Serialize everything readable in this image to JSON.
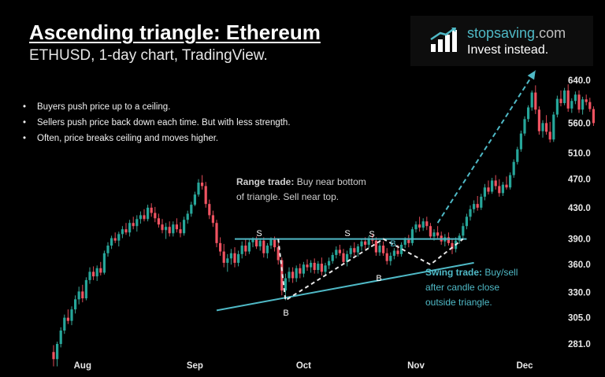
{
  "header": {
    "title": "Ascending triangle: Ethereum",
    "subtitle": "ETHUSD, 1-day chart, TradingView."
  },
  "bullets": [
    "Buyers push price up to a ceiling.",
    "Sellers push price back down each time. But with less strength.",
    "Often, price breaks ceiling and moves higher."
  ],
  "logo": {
    "name_part1": "stop",
    "name_part2": "saving",
    "name_part3": ".com",
    "tagline": "Invest instead."
  },
  "annotations": {
    "range_bold": "Range trade:",
    "range_line1_rest": " Buy near bottom",
    "range_line2": "of triangle. Sell near top.",
    "swing_bold": "Swing trade:",
    "swing_line1_rest": " Buy/sell",
    "swing_line2": "after candle close",
    "swing_line3": "outside triangle."
  },
  "points": [
    {
      "label": "S",
      "x": 329,
      "y": 300,
      "teal": false
    },
    {
      "label": "B",
      "x": 363,
      "y": 401,
      "teal": false
    },
    {
      "label": "S",
      "x": 441,
      "y": 300,
      "teal": false
    },
    {
      "label": "S",
      "x": 472,
      "y": 301,
      "teal": false
    },
    {
      "label": "B",
      "x": 481,
      "y": 357,
      "teal": false
    },
    {
      "label": "B",
      "x": 499,
      "y": 313,
      "teal": true
    }
  ],
  "colors": {
    "up": "#26a69a",
    "down": "#ef5361",
    "wick_up": "#3aa596",
    "wick_down": "#e04a57",
    "teal": "#4fb9c6",
    "dashes": "#e8e8e8",
    "background": "#000000"
  },
  "chart_data": {
    "type": "candlestick",
    "title": "Ascending triangle: Ethereum",
    "subtitle": "ETHUSD, 1-day chart, TradingView.",
    "y_ticks": [
      "640.0",
      "560.0",
      "510.0",
      "470.0",
      "430.0",
      "390.0",
      "360.0",
      "330.0",
      "305.0",
      "281.0"
    ],
    "y_tick_values": [
      640,
      560,
      510,
      470,
      430,
      390,
      360,
      330,
      305,
      281
    ],
    "x_ticks": [
      "Aug",
      "Sep",
      "Oct",
      "Nov",
      "Dec"
    ],
    "x_tick_day": [
      8,
      39,
      69,
      100,
      130
    ],
    "ylim": [
      262,
      682
    ],
    "scale": "log",
    "grid": false,
    "resistance": {
      "start_day": 50,
      "end_day": 114,
      "price": 390
    },
    "support": {
      "start": {
        "day": 45,
        "price": 312
      },
      "end": {
        "day": 116,
        "price": 362
      }
    },
    "range_path": [
      {
        "day": 62,
        "price": 390
      },
      {
        "day": 64,
        "price": 322
      },
      {
        "day": 91,
        "price": 390
      },
      {
        "day": 104,
        "price": 360
      },
      {
        "day": 113,
        "price": 390
      }
    ],
    "breakout_arrow": {
      "from": {
        "day": 106,
        "price": 410
      },
      "to": {
        "day": 133,
        "price": 660
      }
    },
    "candles": [
      [
        274,
        280,
        262,
        268
      ],
      [
        268,
        283,
        262,
        281
      ],
      [
        281,
        296,
        278,
        293
      ],
      [
        293,
        308,
        290,
        305
      ],
      [
        305,
        313,
        299,
        302
      ],
      [
        302,
        316,
        298,
        313
      ],
      [
        313,
        327,
        309,
        323
      ],
      [
        323,
        336,
        318,
        331
      ],
      [
        331,
        338,
        320,
        324
      ],
      [
        324,
        346,
        322,
        343
      ],
      [
        343,
        357,
        339,
        352
      ],
      [
        352,
        358,
        343,
        347
      ],
      [
        347,
        359,
        342,
        356
      ],
      [
        356,
        363,
        348,
        351
      ],
      [
        351,
        376,
        349,
        373
      ],
      [
        373,
        386,
        369,
        382
      ],
      [
        382,
        394,
        378,
        391
      ],
      [
        391,
        398,
        385,
        388
      ],
      [
        388,
        399,
        381,
        396
      ],
      [
        396,
        406,
        391,
        402
      ],
      [
        402,
        410,
        395,
        398
      ],
      [
        398,
        414,
        393,
        410
      ],
      [
        410,
        418,
        402,
        406
      ],
      [
        406,
        420,
        399,
        415
      ],
      [
        415,
        425,
        409,
        420
      ],
      [
        420,
        428,
        412,
        415
      ],
      [
        415,
        434,
        412,
        430
      ],
      [
        430,
        436,
        418,
        423
      ],
      [
        423,
        431,
        411,
        416
      ],
      [
        416,
        422,
        404,
        408
      ],
      [
        408,
        415,
        397,
        401
      ],
      [
        401,
        410,
        390,
        405
      ],
      [
        405,
        412,
        393,
        397
      ],
      [
        397,
        412,
        393,
        408
      ],
      [
        408,
        416,
        398,
        402
      ],
      [
        402,
        411,
        392,
        397
      ],
      [
        397,
        418,
        394,
        414
      ],
      [
        414,
        426,
        409,
        422
      ],
      [
        422,
        438,
        418,
        434
      ],
      [
        434,
        452,
        432,
        448
      ],
      [
        448,
        470,
        445,
        465
      ],
      [
        465,
        476,
        455,
        460
      ],
      [
        460,
        466,
        430,
        435
      ],
      [
        435,
        441,
        415,
        420
      ],
      [
        420,
        426,
        405,
        410
      ],
      [
        410,
        414,
        380,
        385
      ],
      [
        385,
        392,
        370,
        375
      ],
      [
        375,
        384,
        357,
        362
      ],
      [
        362,
        372,
        352,
        367
      ],
      [
        367,
        378,
        360,
        373
      ],
      [
        373,
        380,
        357,
        362
      ],
      [
        362,
        376,
        358,
        372
      ],
      [
        372,
        387,
        367,
        382
      ],
      [
        382,
        389,
        370,
        375
      ],
      [
        375,
        389,
        372,
        386
      ],
      [
        386,
        392,
        380,
        389
      ],
      [
        389,
        393,
        378,
        381
      ],
      [
        381,
        391,
        376,
        388
      ],
      [
        388,
        392,
        368,
        373
      ],
      [
        373,
        385,
        367,
        382
      ],
      [
        382,
        392,
        378,
        389
      ],
      [
        389,
        393,
        375,
        380
      ],
      [
        380,
        385,
        360,
        365
      ],
      [
        365,
        368,
        327,
        332
      ],
      [
        332,
        350,
        322,
        345
      ],
      [
        345,
        357,
        341,
        352
      ],
      [
        352,
        357,
        340,
        345
      ],
      [
        345,
        359,
        341,
        356
      ],
      [
        356,
        361,
        345,
        350
      ],
      [
        350,
        363,
        346,
        360
      ],
      [
        360,
        366,
        353,
        357
      ],
      [
        357,
        365,
        351,
        362
      ],
      [
        362,
        367,
        350,
        354
      ],
      [
        354,
        364,
        350,
        361
      ],
      [
        361,
        368,
        348,
        352
      ],
      [
        352,
        362,
        349,
        359
      ],
      [
        359,
        368,
        355,
        364
      ],
      [
        364,
        374,
        361,
        371
      ],
      [
        371,
        381,
        367,
        377
      ],
      [
        377,
        383,
        370,
        373
      ],
      [
        373,
        378,
        360,
        363
      ],
      [
        363,
        376,
        358,
        372
      ],
      [
        372,
        382,
        368,
        379
      ],
      [
        379,
        386,
        370,
        374
      ],
      [
        374,
        384,
        369,
        381
      ],
      [
        381,
        390,
        376,
        387
      ],
      [
        387,
        392,
        378,
        383
      ],
      [
        383,
        394,
        379,
        391
      ],
      [
        391,
        396,
        384,
        388
      ],
      [
        388,
        392,
        370,
        374
      ],
      [
        374,
        386,
        370,
        382
      ],
      [
        382,
        387,
        370,
        373
      ],
      [
        373,
        379,
        360,
        364
      ],
      [
        364,
        374,
        359,
        370
      ],
      [
        370,
        379,
        366,
        376
      ],
      [
        376,
        383,
        369,
        372
      ],
      [
        372,
        386,
        369,
        383
      ],
      [
        383,
        392,
        379,
        389
      ],
      [
        389,
        395,
        380,
        385
      ],
      [
        385,
        405,
        382,
        402
      ],
      [
        402,
        412,
        398,
        408
      ],
      [
        408,
        418,
        399,
        404
      ],
      [
        404,
        416,
        400,
        412
      ],
      [
        412,
        418,
        401,
        406
      ],
      [
        406,
        410,
        390,
        393
      ],
      [
        393,
        402,
        388,
        398
      ],
      [
        398,
        406,
        391,
        394
      ],
      [
        394,
        399,
        383,
        387
      ],
      [
        387,
        396,
        381,
        392
      ],
      [
        392,
        398,
        382,
        385
      ],
      [
        385,
        390,
        372,
        378
      ],
      [
        378,
        392,
        374,
        388
      ],
      [
        388,
        397,
        384,
        394
      ],
      [
        394,
        410,
        390,
        406
      ],
      [
        406,
        422,
        402,
        418
      ],
      [
        418,
        433,
        413,
        428
      ],
      [
        428,
        440,
        423,
        435
      ],
      [
        435,
        446,
        426,
        430
      ],
      [
        430,
        449,
        427,
        445
      ],
      [
        445,
        463,
        440,
        458
      ],
      [
        458,
        468,
        448,
        452
      ],
      [
        452,
        472,
        449,
        468
      ],
      [
        468,
        476,
        455,
        460
      ],
      [
        460,
        470,
        445,
        450
      ],
      [
        450,
        466,
        446,
        462
      ],
      [
        462,
        474,
        455,
        458
      ],
      [
        458,
        480,
        455,
        476
      ],
      [
        476,
        500,
        472,
        496
      ],
      [
        496,
        520,
        492,
        516
      ],
      [
        516,
        547,
        512,
        542
      ],
      [
        542,
        572,
        538,
        567
      ],
      [
        567,
        592,
        562,
        588
      ],
      [
        588,
        620,
        582,
        616
      ],
      [
        616,
        630,
        576,
        584
      ],
      [
        584,
        590,
        540,
        546
      ],
      [
        546,
        565,
        535,
        560
      ],
      [
        560,
        574,
        540,
        545
      ],
      [
        545,
        562,
        527,
        532
      ],
      [
        532,
        580,
        528,
        575
      ],
      [
        575,
        610,
        570,
        604
      ],
      [
        604,
        620,
        590,
        596
      ],
      [
        596,
        625,
        592,
        620
      ],
      [
        620,
        632,
        580,
        586
      ],
      [
        586,
        605,
        578,
        600
      ],
      [
        600,
        618,
        594,
        612
      ],
      [
        612,
        620,
        578,
        584
      ],
      [
        584,
        608,
        575,
        603
      ],
      [
        603,
        612,
        592,
        598
      ],
      [
        598,
        606,
        580,
        585
      ],
      [
        585,
        590,
        555,
        560
      ]
    ]
  }
}
